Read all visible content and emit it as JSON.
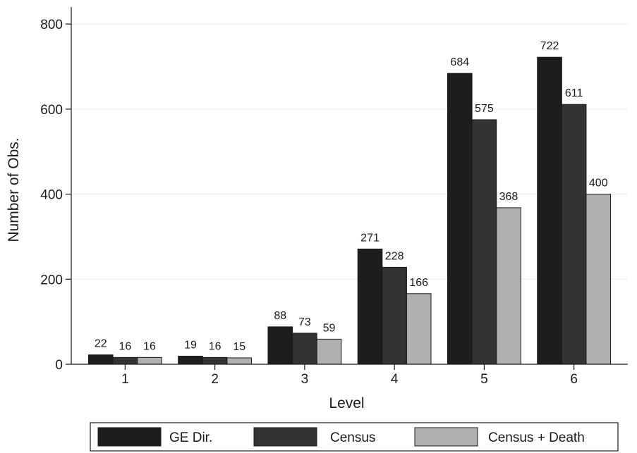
{
  "chart_data": {
    "type": "bar",
    "xlabel": "Level",
    "ylabel": "Number of Obs.",
    "ylim": [
      0,
      840
    ],
    "yticks": [
      0,
      200,
      400,
      600,
      800
    ],
    "grid": "horizontal",
    "legend_position": "bottom",
    "categories": [
      "1",
      "2",
      "3",
      "4",
      "5",
      "6"
    ],
    "series": [
      {
        "name": "GE Dir.",
        "color": "#1e1c1d",
        "values": [
          22,
          19,
          88,
          271,
          684,
          722
        ]
      },
      {
        "name": "Census",
        "color": "#333333",
        "values": [
          16,
          16,
          73,
          228,
          575,
          611
        ]
      },
      {
        "name": "Census + Death",
        "color": "#b0b0b0",
        "values": [
          16,
          15,
          59,
          166,
          368,
          400
        ]
      }
    ]
  }
}
